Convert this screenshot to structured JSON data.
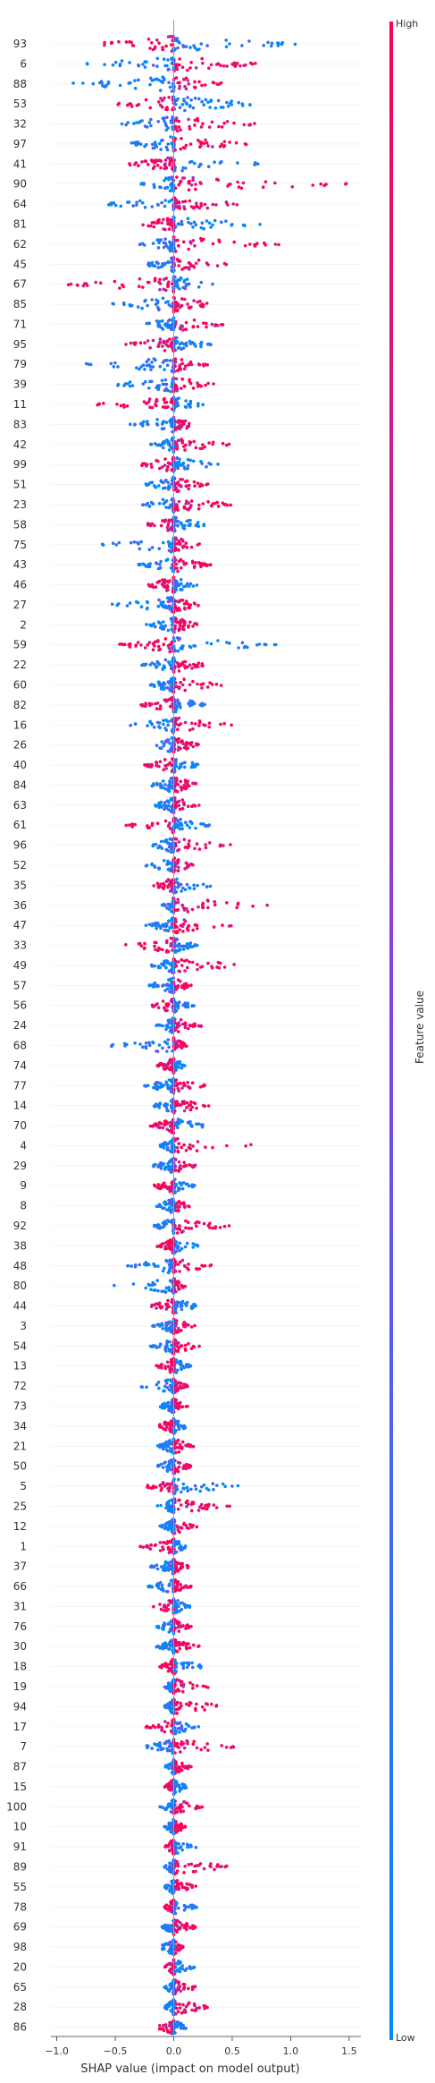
{
  "chart_data": {
    "type": "scatter",
    "subtype": "shap-beeswarm-summary",
    "xlabel": "SHAP value (impact on model output)",
    "xlim": [
      -1.05,
      1.6
    ],
    "xticks": [
      -1.0,
      -0.5,
      0.0,
      0.5,
      1.0,
      1.5
    ],
    "xtick_labels": [
      "−1.0",
      "−0.5",
      "0.0",
      "0.5",
      "1.0",
      "1.5"
    ],
    "features": [
      "93",
      "6",
      "88",
      "53",
      "32",
      "97",
      "41",
      "90",
      "64",
      "81",
      "62",
      "45",
      "67",
      "85",
      "71",
      "95",
      "79",
      "39",
      "11",
      "83",
      "42",
      "99",
      "51",
      "23",
      "58",
      "75",
      "43",
      "46",
      "27",
      "2",
      "59",
      "22",
      "60",
      "82",
      "16",
      "26",
      "40",
      "84",
      "63",
      "61",
      "96",
      "52",
      "35",
      "36",
      "47",
      "33",
      "49",
      "57",
      "56",
      "24",
      "68",
      "74",
      "77",
      "14",
      "70",
      "4",
      "29",
      "9",
      "8",
      "92",
      "38",
      "48",
      "80",
      "44",
      "3",
      "54",
      "13",
      "72",
      "73",
      "34",
      "21",
      "50",
      "5",
      "25",
      "12",
      "1",
      "37",
      "66",
      "31",
      "76",
      "30",
      "18",
      "19",
      "94",
      "17",
      "7",
      "87",
      "15",
      "100",
      "10",
      "91",
      "89",
      "55",
      "78",
      "69",
      "98",
      "20",
      "65",
      "28",
      "86"
    ],
    "spread": [
      [
        -0.72,
        1.12
      ],
      [
        -0.75,
        0.75
      ],
      [
        -0.9,
        0.45
      ],
      [
        -0.52,
        0.75
      ],
      [
        -0.45,
        0.72
      ],
      [
        -0.4,
        0.65
      ],
      [
        -0.4,
        0.8
      ],
      [
        -0.28,
        1.5
      ],
      [
        -0.6,
        0.6
      ],
      [
        -0.28,
        0.75
      ],
      [
        -0.3,
        0.9
      ],
      [
        -0.25,
        0.45
      ],
      [
        -0.95,
        0.35
      ],
      [
        -0.55,
        0.35
      ],
      [
        -0.25,
        0.42
      ],
      [
        -0.42,
        0.32
      ],
      [
        -0.78,
        0.3
      ],
      [
        -0.52,
        0.35
      ],
      [
        -0.7,
        0.25
      ],
      [
        -0.4,
        0.22
      ],
      [
        -0.2,
        0.48
      ],
      [
        -0.3,
        0.38
      ],
      [
        -0.25,
        0.3
      ],
      [
        -0.28,
        0.5
      ],
      [
        -0.25,
        0.3
      ],
      [
        -0.62,
        0.25
      ],
      [
        -0.3,
        0.32
      ],
      [
        -0.25,
        0.2
      ],
      [
        -0.55,
        0.22
      ],
      [
        -0.25,
        0.22
      ],
      [
        -0.5,
        0.9
      ],
      [
        -0.28,
        0.28
      ],
      [
        -0.2,
        0.42
      ],
      [
        -0.28,
        0.3
      ],
      [
        -0.38,
        0.5
      ],
      [
        -0.25,
        0.22
      ],
      [
        -0.25,
        0.22
      ],
      [
        -0.2,
        0.25
      ],
      [
        -0.18,
        0.22
      ],
      [
        -0.45,
        0.32
      ],
      [
        -0.2,
        0.5
      ],
      [
        -0.25,
        0.18
      ],
      [
        -0.18,
        0.35
      ],
      [
        -0.1,
        0.8
      ],
      [
        -0.25,
        0.5
      ],
      [
        -0.48,
        0.2
      ],
      [
        -0.2,
        0.6
      ],
      [
        -0.22,
        0.15
      ],
      [
        -0.2,
        0.18
      ],
      [
        -0.15,
        0.25
      ],
      [
        -0.58,
        0.12
      ],
      [
        -0.15,
        0.12
      ],
      [
        -0.25,
        0.28
      ],
      [
        -0.18,
        0.32
      ],
      [
        -0.2,
        0.3
      ],
      [
        -0.12,
        0.72
      ],
      [
        -0.18,
        0.2
      ],
      [
        -0.18,
        0.18
      ],
      [
        -0.15,
        0.15
      ],
      [
        -0.18,
        0.48
      ],
      [
        -0.15,
        0.22
      ],
      [
        -0.4,
        0.35
      ],
      [
        -0.52,
        0.1
      ],
      [
        -0.2,
        0.22
      ],
      [
        -0.18,
        0.18
      ],
      [
        -0.2,
        0.22
      ],
      [
        -0.15,
        0.15
      ],
      [
        -0.3,
        0.12
      ],
      [
        -0.12,
        0.12
      ],
      [
        -0.15,
        0.12
      ],
      [
        -0.15,
        0.18
      ],
      [
        -0.15,
        0.15
      ],
      [
        -0.25,
        0.62
      ],
      [
        -0.15,
        0.48
      ],
      [
        -0.12,
        0.2
      ],
      [
        -0.3,
        0.12
      ],
      [
        -0.2,
        0.15
      ],
      [
        -0.22,
        0.15
      ],
      [
        -0.18,
        0.15
      ],
      [
        -0.15,
        0.15
      ],
      [
        -0.15,
        0.22
      ],
      [
        -0.12,
        0.28
      ],
      [
        -0.08,
        0.32
      ],
      [
        -0.08,
        0.45
      ],
      [
        -0.25,
        0.22
      ],
      [
        -0.25,
        0.55
      ],
      [
        -0.08,
        0.15
      ],
      [
        -0.08,
        0.12
      ],
      [
        -0.12,
        0.25
      ],
      [
        -0.08,
        0.1
      ],
      [
        -0.08,
        0.2
      ],
      [
        -0.08,
        0.5
      ],
      [
        -0.08,
        0.2
      ],
      [
        -0.08,
        0.2
      ],
      [
        -0.1,
        0.2
      ],
      [
        -0.15,
        0.08
      ],
      [
        -0.08,
        0.18
      ],
      [
        -0.08,
        0.22
      ],
      [
        -0.08,
        0.32
      ],
      [
        -0.15,
        0.12
      ]
    ],
    "colorbar": {
      "label": "Feature value",
      "high_label": "High",
      "low_label": "Low",
      "high_color": "#ff0052",
      "mid_color": "#7e48e4",
      "low_color": "#008bfb"
    },
    "grid": false,
    "legend": "colorbar-right"
  }
}
